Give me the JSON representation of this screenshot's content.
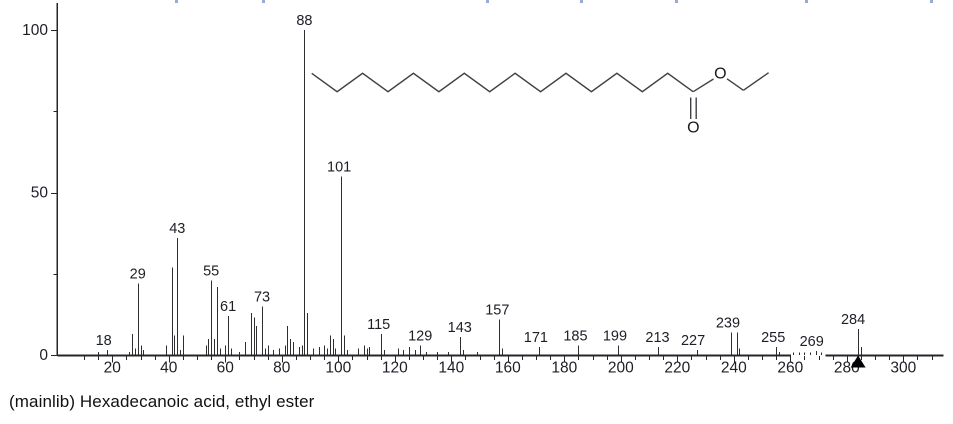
{
  "caption": "(mainlib) Hexadecanoic acid, ethyl ester",
  "colors": {
    "background": "#ffffff",
    "ink": "#1c1f26",
    "axis": "#26262a",
    "stick": "#2e2e32",
    "structure_line": "#3f4145",
    "marker": "#000000",
    "artifact": "#7d96c8"
  },
  "chart_data": {
    "type": "bar",
    "subtype": "mass_spectrum_stick_plot",
    "title": "",
    "xlabel": "",
    "ylabel": "",
    "x_axis": {
      "min": 0,
      "max": 312,
      "major_ticks": [
        20,
        40,
        60,
        80,
        100,
        120,
        140,
        160,
        180,
        200,
        220,
        240,
        260,
        280,
        300
      ],
      "major_tick_labels": [
        "20",
        "40",
        "60",
        "80",
        "100",
        "120",
        "140",
        "160",
        "180",
        "200",
        "220",
        "240",
        "260",
        "280",
        "300"
      ],
      "minor_tick_step": 5,
      "minor_tick_start": 10,
      "minor_tick_end": 310
    },
    "y_axis": {
      "min": 0,
      "max": 100,
      "labeled_ticks": [
        0,
        50,
        100
      ],
      "labels": [
        "0",
        "50",
        "100"
      ],
      "minor_ticks": [
        25,
        75
      ]
    },
    "base_peak": {
      "mz": 88,
      "intensity": 100
    },
    "molecular_ion": {
      "mz": 284,
      "marker": "filled_triangle"
    },
    "axis_gap_dotted": {
      "from_mz": 260,
      "to_mz": 272
    },
    "labeled_peaks": [
      18,
      29,
      43,
      55,
      61,
      73,
      88,
      101,
      115,
      129,
      143,
      157,
      171,
      185,
      199,
      213,
      227,
      239,
      255,
      269,
      284
    ],
    "peaks": [
      [
        15,
        1
      ],
      [
        18,
        1.5
      ],
      [
        26,
        1
      ],
      [
        27,
        6.5
      ],
      [
        28,
        2
      ],
      [
        29,
        22
      ],
      [
        30,
        3
      ],
      [
        31,
        1.5
      ],
      [
        39,
        3
      ],
      [
        41,
        27
      ],
      [
        42,
        6
      ],
      [
        43,
        36
      ],
      [
        44,
        1.5
      ],
      [
        45,
        6
      ],
      [
        53,
        3
      ],
      [
        54,
        5
      ],
      [
        55,
        23
      ],
      [
        56,
        5
      ],
      [
        57,
        21
      ],
      [
        58,
        2
      ],
      [
        60,
        3
      ],
      [
        61,
        12
      ],
      [
        62,
        2
      ],
      [
        65,
        1
      ],
      [
        67,
        4
      ],
      [
        69,
        13
      ],
      [
        70,
        11.5
      ],
      [
        71,
        9
      ],
      [
        73,
        15
      ],
      [
        74,
        2
      ],
      [
        75,
        3
      ],
      [
        77,
        1.5
      ],
      [
        79,
        2
      ],
      [
        81,
        3
      ],
      [
        82,
        9
      ],
      [
        83,
        5
      ],
      [
        84,
        4
      ],
      [
        86,
        2.5
      ],
      [
        87,
        3
      ],
      [
        88,
        100
      ],
      [
        89,
        13
      ],
      [
        91,
        2
      ],
      [
        93,
        2.5
      ],
      [
        95,
        3
      ],
      [
        96,
        2
      ],
      [
        97,
        6
      ],
      [
        98,
        5
      ],
      [
        99,
        2
      ],
      [
        101,
        55
      ],
      [
        102,
        6
      ],
      [
        103,
        1.5
      ],
      [
        107,
        2
      ],
      [
        109,
        3
      ],
      [
        110,
        2
      ],
      [
        111,
        2.5
      ],
      [
        115,
        6.5
      ],
      [
        116,
        1.5
      ],
      [
        121,
        2
      ],
      [
        123,
        1.5
      ],
      [
        125,
        2.5
      ],
      [
        127,
        1.5
      ],
      [
        129,
        3
      ],
      [
        131,
        1
      ],
      [
        135,
        1
      ],
      [
        139,
        1
      ],
      [
        143,
        5.5
      ],
      [
        144,
        1.5
      ],
      [
        149,
        1
      ],
      [
        157,
        11
      ],
      [
        158,
        2
      ],
      [
        171,
        2.5
      ],
      [
        185,
        3
      ],
      [
        199,
        3
      ],
      [
        213,
        2.5
      ],
      [
        227,
        1.5
      ],
      [
        239,
        7
      ],
      [
        241,
        7
      ],
      [
        242,
        2
      ],
      [
        255,
        2.5
      ],
      [
        256,
        1
      ],
      [
        261,
        0.8
      ],
      [
        263,
        0.8
      ],
      [
        265,
        0.8
      ],
      [
        267,
        0.8
      ],
      [
        269,
        1.2
      ],
      [
        271,
        0.8
      ],
      [
        284,
        8
      ],
      [
        285,
        2.5
      ]
    ]
  },
  "structure": {
    "kind": "skeletal_formula",
    "chain_vertex_count": 16,
    "atom_labels": [
      "O",
      "O"
    ]
  }
}
